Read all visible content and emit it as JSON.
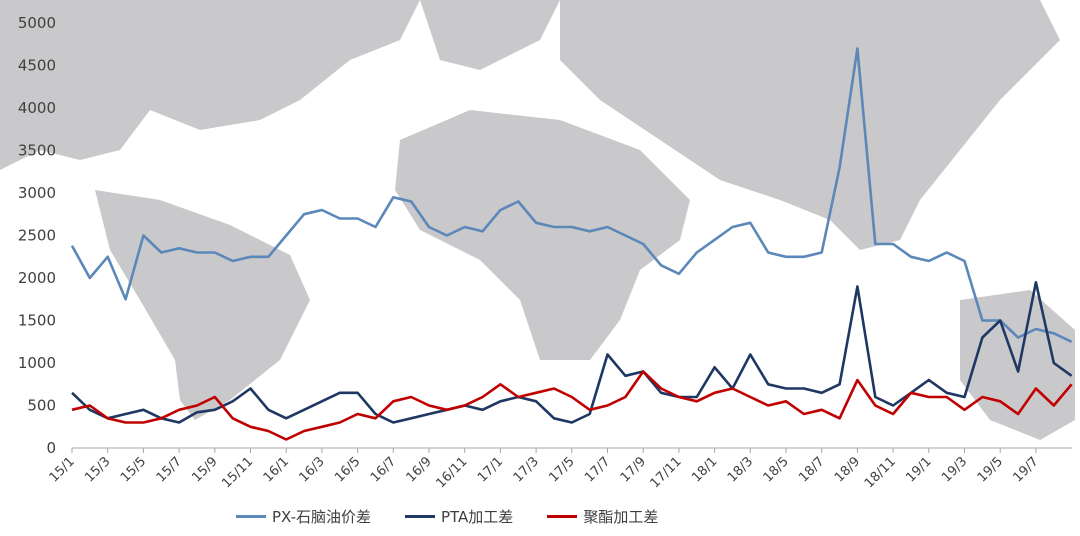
{
  "chart_data": {
    "type": "line",
    "title": "",
    "xlabel": "",
    "ylabel": "",
    "ylim": [
      0,
      5000
    ],
    "yticks": [
      0,
      500,
      1000,
      1500,
      2000,
      2500,
      3000,
      3500,
      4000,
      4500,
      5000
    ],
    "x_tick_labels": [
      "15/1",
      "15/3",
      "15/5",
      "15/7",
      "15/9",
      "15/11",
      "16/1",
      "16/3",
      "16/5",
      "16/7",
      "16/9",
      "16/11",
      "17/1",
      "17/3",
      "17/5",
      "17/7",
      "17/9",
      "17/11",
      "18/1",
      "18/3",
      "18/5",
      "18/7",
      "18/9",
      "18/11",
      "19/1",
      "19/3",
      "19/5",
      "19/7"
    ],
    "x": [
      "15/1",
      "15/2",
      "15/3",
      "15/4",
      "15/5",
      "15/6",
      "15/7",
      "15/8",
      "15/9",
      "15/10",
      "15/11",
      "15/12",
      "16/1",
      "16/2",
      "16/3",
      "16/4",
      "16/5",
      "16/6",
      "16/7",
      "16/8",
      "16/9",
      "16/10",
      "16/11",
      "16/12",
      "17/1",
      "17/2",
      "17/3",
      "17/4",
      "17/5",
      "17/6",
      "17/7",
      "17/8",
      "17/9",
      "17/10",
      "17/11",
      "17/12",
      "18/1",
      "18/2",
      "18/3",
      "18/4",
      "18/5",
      "18/6",
      "18/7",
      "18/8",
      "18/9",
      "18/10",
      "18/11",
      "18/12",
      "19/1",
      "19/2",
      "19/3",
      "19/4",
      "19/5",
      "19/6",
      "19/7",
      "19/8",
      "19/9"
    ],
    "legend_position": "bottom",
    "grid": false,
    "series": [
      {
        "name": "PX-石脑油价差",
        "color": "#5b87b9",
        "values": [
          2380,
          2000,
          2250,
          1750,
          2500,
          2300,
          2350,
          2300,
          2300,
          2200,
          2250,
          2250,
          2500,
          2750,
          2800,
          2700,
          2700,
          2600,
          2950,
          2900,
          2600,
          2500,
          2600,
          2550,
          2800,
          2900,
          2650,
          2600,
          2600,
          2550,
          2600,
          2500,
          2400,
          2150,
          2050,
          2300,
          2450,
          2600,
          2650,
          2300,
          2250,
          2250,
          2300,
          3300,
          4700,
          2400,
          2400,
          2250,
          2200,
          2300,
          2200,
          1500,
          1500,
          1300,
          1400,
          1350,
          1250
        ]
      },
      {
        "name": "PTA加工差",
        "color": "#1f3763",
        "values": [
          650,
          450,
          350,
          400,
          450,
          350,
          300,
          420,
          450,
          550,
          700,
          450,
          350,
          450,
          550,
          650,
          650,
          400,
          300,
          350,
          400,
          450,
          500,
          450,
          550,
          600,
          550,
          350,
          300,
          400,
          1100,
          850,
          900,
          650,
          600,
          600,
          950,
          700,
          1100,
          750,
          700,
          700,
          650,
          750,
          1900,
          600,
          500,
          650,
          800,
          650,
          600,
          1300,
          1500,
          900,
          1950,
          1000,
          850
        ]
      },
      {
        "name": "聚酯加工差",
        "color": "#c00000",
        "values": [
          450,
          500,
          350,
          300,
          300,
          350,
          450,
          500,
          600,
          350,
          250,
          200,
          100,
          200,
          250,
          300,
          400,
          350,
          550,
          600,
          500,
          450,
          500,
          600,
          750,
          600,
          650,
          700,
          600,
          450,
          500,
          600,
          900,
          700,
          600,
          550,
          650,
          700,
          600,
          500,
          550,
          400,
          450,
          350,
          800,
          500,
          400,
          650,
          600,
          600,
          450,
          600,
          550,
          400,
          700,
          500,
          750
        ]
      }
    ]
  }
}
